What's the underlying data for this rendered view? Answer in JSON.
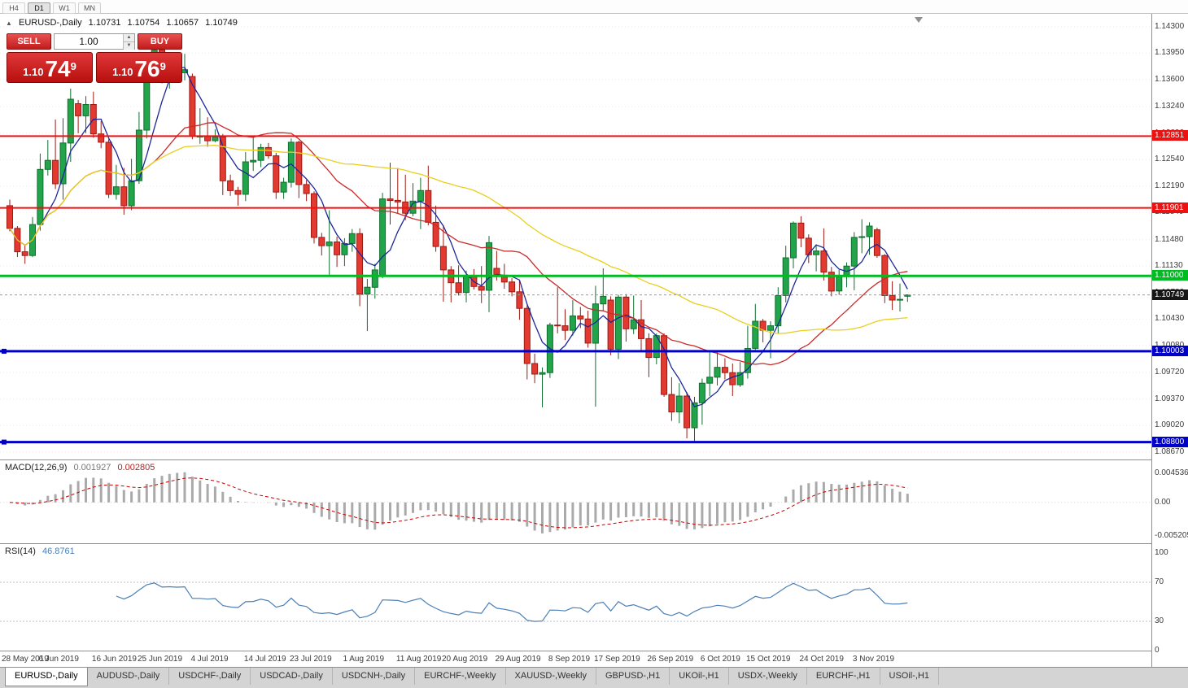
{
  "toolbar": {
    "timeframes": [
      {
        "label": "H4",
        "active": false
      },
      {
        "label": "D1",
        "active": true
      },
      {
        "label": "W1",
        "active": false
      },
      {
        "label": "MN",
        "active": false
      }
    ]
  },
  "title_bar": {
    "marker": "▲",
    "symbol": "EURUSD-,Daily",
    "open": "1.10731",
    "high": "1.10754",
    "low": "1.10657",
    "close": "1.10749"
  },
  "trade_panel": {
    "sell_label": "SELL",
    "buy_label": "BUY",
    "volume": "1.00",
    "sell_price": {
      "base": "1.10",
      "big": "74",
      "sup": "9"
    },
    "buy_price": {
      "base": "1.10",
      "big": "76",
      "sup": "9"
    }
  },
  "price_axis": {
    "ticks": [
      "1.14300",
      "1.13950",
      "1.13600",
      "1.13240",
      "1.12890",
      "1.12540",
      "1.12190",
      "1.11840",
      "1.11480",
      "1.11130",
      "1.10780",
      "1.10430",
      "1.10080",
      "1.09720",
      "1.09370",
      "1.09020",
      "1.08670"
    ]
  },
  "levels": [
    {
      "value": 1.12851,
      "label": "1.12851",
      "color": "#ee1111",
      "thickness": 2
    },
    {
      "value": 1.11901,
      "label": "1.11901",
      "color": "#ee1111",
      "thickness": 2
    },
    {
      "value": 1.11,
      "label": "1.11000",
      "color": "#00bb22",
      "thickness": 3
    },
    {
      "value": 1.10003,
      "label": "1.10003",
      "color": "#0000c8",
      "thickness": 3
    },
    {
      "value": 1.088,
      "label": "1.08800",
      "color": "#0000c8",
      "thickness": 3
    }
  ],
  "current_price": {
    "value": 1.10749,
    "label": "1.10749"
  },
  "colors": {
    "up": "#21a44a",
    "up_border": "#116e2f",
    "down": "#e23a30",
    "down_border": "#9c1a12",
    "macd_hist": "#aaaaaa",
    "macd_signal": "#c80000",
    "rsi": "#4b7fb5",
    "grid": "#ececec",
    "current_line": "#999999"
  },
  "chart_data": {
    "type": "candlestick",
    "title": "EURUSD-,Daily",
    "y_range": [
      1.0857,
      1.1447
    ],
    "x_labels": [
      {
        "text": "28 May 2019",
        "i": 0
      },
      {
        "text": "6 Jun 2019",
        "i": 7
      },
      {
        "text": "16 Jun 2019",
        "i": 14
      },
      {
        "text": "25 Jun 2019",
        "i": 20
      },
      {
        "text": "4 Jul 2019",
        "i": 27
      },
      {
        "text": "14 Jul 2019",
        "i": 34
      },
      {
        "text": "23 Jul 2019",
        "i": 40
      },
      {
        "text": "1 Aug 2019",
        "i": 47
      },
      {
        "text": "11 Aug 2019",
        "i": 54
      },
      {
        "text": "20 Aug 2019",
        "i": 60
      },
      {
        "text": "29 Aug 2019",
        "i": 67
      },
      {
        "text": "8 Sep 2019",
        "i": 74
      },
      {
        "text": "17 Sep 2019",
        "i": 80
      },
      {
        "text": "26 Sep 2019",
        "i": 87
      },
      {
        "text": "6 Oct 2019",
        "i": 94
      },
      {
        "text": "15 Oct 2019",
        "i": 100
      },
      {
        "text": "24 Oct 2019",
        "i": 107
      },
      {
        "text": "3 Nov 2019",
        "i": 114
      }
    ],
    "moving_averages": [
      {
        "period": 5,
        "color": "#1c2798"
      },
      {
        "period": 20,
        "color": "#c92a2a"
      },
      {
        "period": 45,
        "color": "#e8cf1e"
      }
    ],
    "candles": [
      [
        1.1193,
        1.1201,
        1.1159,
        1.1163
      ],
      [
        1.1163,
        1.1166,
        1.1125,
        1.1132
      ],
      [
        1.1132,
        1.114,
        1.1116,
        1.1127
      ],
      [
        1.1127,
        1.1178,
        1.1125,
        1.1168
      ],
      [
        1.1168,
        1.1262,
        1.116,
        1.1241
      ],
      [
        1.1241,
        1.128,
        1.1233,
        1.1253
      ],
      [
        1.1253,
        1.1307,
        1.1215,
        1.1222
      ],
      [
        1.1222,
        1.1309,
        1.1201,
        1.1276
      ],
      [
        1.1276,
        1.1348,
        1.1251,
        1.1334
      ],
      [
        1.1328,
        1.1333,
        1.1289,
        1.1312
      ],
      [
        1.1312,
        1.1338,
        1.1289,
        1.1327
      ],
      [
        1.1327,
        1.1344,
        1.1283,
        1.1288
      ],
      [
        1.1288,
        1.1305,
        1.1269,
        1.1277
      ],
      [
        1.1277,
        1.1281,
        1.1203,
        1.1208
      ],
      [
        1.1208,
        1.1247,
        1.1201,
        1.1218
      ],
      [
        1.1218,
        1.1243,
        1.1181,
        1.1193
      ],
      [
        1.1193,
        1.1255,
        1.1187,
        1.1226
      ],
      [
        1.1226,
        1.1317,
        1.1222,
        1.1293
      ],
      [
        1.1293,
        1.1378,
        1.1282,
        1.1369
      ],
      [
        1.1369,
        1.1403,
        1.1362,
        1.1399
      ],
      [
        1.1399,
        1.1412,
        1.1355,
        1.1367
      ],
      [
        1.1367,
        1.1388,
        1.1348,
        1.1372
      ],
      [
        1.1372,
        1.139,
        1.1357,
        1.1369
      ],
      [
        1.1369,
        1.1394,
        1.1359,
        1.1373
      ],
      [
        1.1364,
        1.1368,
        1.1281,
        1.1285
      ],
      [
        1.1285,
        1.1322,
        1.1275,
        1.1285
      ],
      [
        1.1285,
        1.131,
        1.1271,
        1.1279
      ],
      [
        1.1279,
        1.1294,
        1.1277,
        1.1284
      ],
      [
        1.1284,
        1.1288,
        1.1207,
        1.1226
      ],
      [
        1.1226,
        1.1234,
        1.1206,
        1.1213
      ],
      [
        1.1213,
        1.1218,
        1.1193,
        1.1208
      ],
      [
        1.1208,
        1.1264,
        1.1199,
        1.1251
      ],
      [
        1.1251,
        1.1286,
        1.1239,
        1.1253
      ],
      [
        1.1253,
        1.1275,
        1.1244,
        1.127
      ],
      [
        1.127,
        1.1276,
        1.1255,
        1.1259
      ],
      [
        1.1259,
        1.1263,
        1.1202,
        1.1211
      ],
      [
        1.1211,
        1.123,
        1.1202,
        1.1224
      ],
      [
        1.1224,
        1.1282,
        1.1217,
        1.1277
      ],
      [
        1.1277,
        1.1279,
        1.1203,
        1.1221
      ],
      [
        1.1221,
        1.1227,
        1.1199,
        1.1209
      ],
      [
        1.1209,
        1.1212,
        1.1143,
        1.1151
      ],
      [
        1.1151,
        1.1157,
        1.1127,
        1.114
      ],
      [
        1.114,
        1.1187,
        1.1101,
        1.1145
      ],
      [
        1.1145,
        1.1152,
        1.1112,
        1.1128
      ],
      [
        1.1128,
        1.115,
        1.1113,
        1.1143
      ],
      [
        1.1143,
        1.1162,
        1.1132,
        1.1156
      ],
      [
        1.1156,
        1.1163,
        1.106,
        1.1076
      ],
      [
        1.1076,
        1.1096,
        1.1027,
        1.1085
      ],
      [
        1.1085,
        1.1116,
        1.107,
        1.1108
      ],
      [
        1.11,
        1.121,
        1.1097,
        1.1202
      ],
      [
        1.1202,
        1.125,
        1.1168,
        1.12
      ],
      [
        1.12,
        1.1243,
        1.1183,
        1.1198
      ],
      [
        1.1198,
        1.1234,
        1.1174,
        1.1183
      ],
      [
        1.1183,
        1.1223,
        1.1179,
        1.1199
      ],
      [
        1.1199,
        1.123,
        1.1162,
        1.1213
      ],
      [
        1.1213,
        1.1246,
        1.1167,
        1.1171
      ],
      [
        1.1171,
        1.1193,
        1.1132,
        1.1139
      ],
      [
        1.1139,
        1.1167,
        1.1066,
        1.1108
      ],
      [
        1.1108,
        1.1113,
        1.1065,
        1.1091
      ],
      [
        1.1091,
        1.1114,
        1.1074,
        1.1078
      ],
      [
        1.1078,
        1.1107,
        1.1065,
        1.1099
      ],
      [
        1.1099,
        1.1109,
        1.1082,
        1.1086
      ],
      [
        1.1086,
        1.1113,
        1.1064,
        1.1081
      ],
      [
        1.1081,
        1.1153,
        1.1052,
        1.1144
      ],
      [
        1.111,
        1.1133,
        1.1094,
        1.1101
      ],
      [
        1.1101,
        1.1116,
        1.1083,
        1.1092
      ],
      [
        1.1092,
        1.1097,
        1.1073,
        1.1079
      ],
      [
        1.1079,
        1.1094,
        1.1042,
        1.1057
      ],
      [
        1.1057,
        1.1061,
        1.0963,
        1.0984
      ],
      [
        1.0984,
        1.0997,
        1.0958,
        1.097
      ],
      [
        1.097,
        1.0979,
        1.0926,
        1.0972
      ],
      [
        1.0972,
        1.1038,
        1.0965,
        1.1035
      ],
      [
        1.1035,
        1.1085,
        1.1024,
        1.1034
      ],
      [
        1.1034,
        1.1056,
        1.1015,
        1.1028
      ],
      [
        1.1028,
        1.1068,
        1.1021,
        1.1047
      ],
      [
        1.1047,
        1.1059,
        1.1031,
        1.1043
      ],
      [
        1.1043,
        1.1054,
        1.1005,
        1.1011
      ],
      [
        1.1011,
        1.1087,
        1.0927,
        1.1063
      ],
      [
        1.1063,
        1.111,
        1.1054,
        1.1073
      ],
      [
        1.1068,
        1.1073,
        1.0995,
        1.1003
      ],
      [
        1.1003,
        1.1075,
        1.099,
        1.1072
      ],
      [
        1.1072,
        1.1076,
        1.1013,
        1.103
      ],
      [
        1.103,
        1.1074,
        1.1023,
        1.1042
      ],
      [
        1.1042,
        1.1068,
        1.1,
        1.1017
      ],
      [
        1.1017,
        1.1024,
        1.0966,
        1.0992
      ],
      [
        1.0992,
        1.1024,
        1.0983,
        1.1021
      ],
      [
        1.1021,
        1.1024,
        1.094,
        1.0943
      ],
      [
        1.0943,
        1.0966,
        1.0908,
        1.092
      ],
      [
        1.092,
        1.0958,
        1.0905,
        1.0941
      ],
      [
        1.0941,
        1.0946,
        1.0885,
        1.0899
      ],
      [
        1.0899,
        1.094,
        1.0879,
        1.0932
      ],
      [
        1.0932,
        1.0964,
        1.0903,
        1.0958
      ],
      [
        1.0958,
        1.0999,
        1.0941,
        1.0966
      ],
      [
        1.0966,
        1.0999,
        1.0955,
        1.0979
      ],
      [
        1.0979,
        1.0991,
        1.0963,
        1.0972
      ],
      [
        1.0972,
        1.0984,
        1.0941,
        1.0956
      ],
      [
        1.0956,
        1.0986,
        1.0953,
        1.0972
      ],
      [
        1.0972,
        1.1034,
        1.0964,
        1.1004
      ],
      [
        1.1004,
        1.1063,
        1.1002,
        1.104
      ],
      [
        1.104,
        1.1043,
        1.1012,
        1.1028
      ],
      [
        1.1028,
        1.104,
        1.0991,
        1.1034
      ],
      [
        1.1034,
        1.1085,
        1.1024,
        1.1074
      ],
      [
        1.1074,
        1.114,
        1.1065,
        1.1124
      ],
      [
        1.1124,
        1.1172,
        1.111,
        1.117
      ],
      [
        1.117,
        1.1179,
        1.1138,
        1.115
      ],
      [
        1.115,
        1.1155,
        1.1117,
        1.1128
      ],
      [
        1.1128,
        1.114,
        1.1106,
        1.1133
      ],
      [
        1.1133,
        1.1163,
        1.1094,
        1.1105
      ],
      [
        1.1105,
        1.1112,
        1.1073,
        1.108
      ],
      [
        1.108,
        1.1108,
        1.1075,
        1.1099
      ],
      [
        1.1099,
        1.1118,
        1.1085,
        1.1113
      ],
      [
        1.1113,
        1.1158,
        1.1081,
        1.1151
      ],
      [
        1.1151,
        1.1175,
        1.113,
        1.1152
      ],
      [
        1.1152,
        1.1171,
        1.1128,
        1.1166
      ],
      [
        1.1161,
        1.1164,
        1.1124,
        1.1127
      ],
      [
        1.1127,
        1.1129,
        1.1064,
        1.1074
      ],
      [
        1.1074,
        1.1093,
        1.1055,
        1.1068
      ],
      [
        1.1068,
        1.109,
        1.1053,
        1.1069
      ],
      [
        1.10731,
        1.10754,
        1.10657,
        1.10749
      ]
    ],
    "indicators": [
      {
        "type": "macd",
        "label": "MACD(12,26,9)",
        "value_main": "0.001927",
        "value_signal": "0.002805",
        "fast": 12,
        "slow": 26,
        "signal": 9,
        "axis_ticks": [
          "0.004536",
          "0.00",
          "-0.005205"
        ],
        "y_range": [
          -0.0063,
          0.0065
        ]
      },
      {
        "type": "rsi",
        "label": "RSI(14)",
        "value": "46.8761",
        "period": 14,
        "axis_ticks": [
          "100",
          "70",
          "30",
          "0"
        ],
        "levels": [
          70,
          30
        ],
        "y_range": [
          0,
          100
        ]
      }
    ]
  },
  "tabs": [
    {
      "label": "EURUSD-,Daily",
      "active": true
    },
    {
      "label": "AUDUSD-,Daily",
      "active": false
    },
    {
      "label": "USDCHF-,Daily",
      "active": false
    },
    {
      "label": "USDCAD-,Daily",
      "active": false
    },
    {
      "label": "USDCNH-,Daily",
      "active": false
    },
    {
      "label": "EURCHF-,Weekly",
      "active": false
    },
    {
      "label": "XAUUSD-,Weekly",
      "active": false
    },
    {
      "label": "GBPUSD-,H1",
      "active": false
    },
    {
      "label": "UKOil-,H1",
      "active": false
    },
    {
      "label": "USDX-,Weekly",
      "active": false
    },
    {
      "label": "EURCHF-,H1",
      "active": false
    },
    {
      "label": "USOil-,H1",
      "active": false
    }
  ]
}
